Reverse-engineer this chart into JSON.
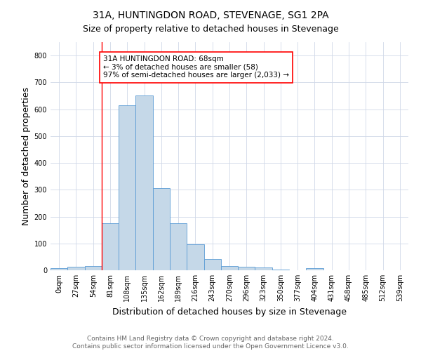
{
  "title": "31A, HUNTINGDON ROAD, STEVENAGE, SG1 2PA",
  "subtitle": "Size of property relative to detached houses in Stevenage",
  "xlabel": "Distribution of detached houses by size in Stevenage",
  "ylabel": "Number of detached properties",
  "footer_line1": "Contains HM Land Registry data © Crown copyright and database right 2024.",
  "footer_line2": "Contains public sector information licensed under the Open Government Licence v3.0.",
  "bin_labels": [
    "0sqm",
    "27sqm",
    "54sqm",
    "81sqm",
    "108sqm",
    "135sqm",
    "162sqm",
    "189sqm",
    "216sqm",
    "243sqm",
    "270sqm",
    "296sqm",
    "323sqm",
    "350sqm",
    "377sqm",
    "404sqm",
    "431sqm",
    "458sqm",
    "485sqm",
    "512sqm",
    "539sqm"
  ],
  "bar_values": [
    8,
    12,
    15,
    175,
    615,
    650,
    305,
    175,
    97,
    42,
    15,
    12,
    10,
    3,
    0,
    8,
    0,
    0,
    0,
    0,
    0
  ],
  "bar_color": "#c5d8e8",
  "bar_edge_color": "#5b9bd5",
  "annotation_text": "31A HUNTINGDON ROAD: 68sqm\n← 3% of detached houses are smaller (58)\n97% of semi-detached houses are larger (2,033) →",
  "annotation_box_color": "white",
  "annotation_box_edgecolor": "red",
  "red_line_x": 2.52,
  "ylim": [
    0,
    850
  ],
  "bin_width": 27,
  "background_color": "white",
  "grid_color": "#d0d8e8",
  "title_fontsize": 10,
  "subtitle_fontsize": 9,
  "axis_label_fontsize": 9,
  "tick_fontsize": 7,
  "annotation_fontsize": 7.5,
  "footer_fontsize": 6.5
}
